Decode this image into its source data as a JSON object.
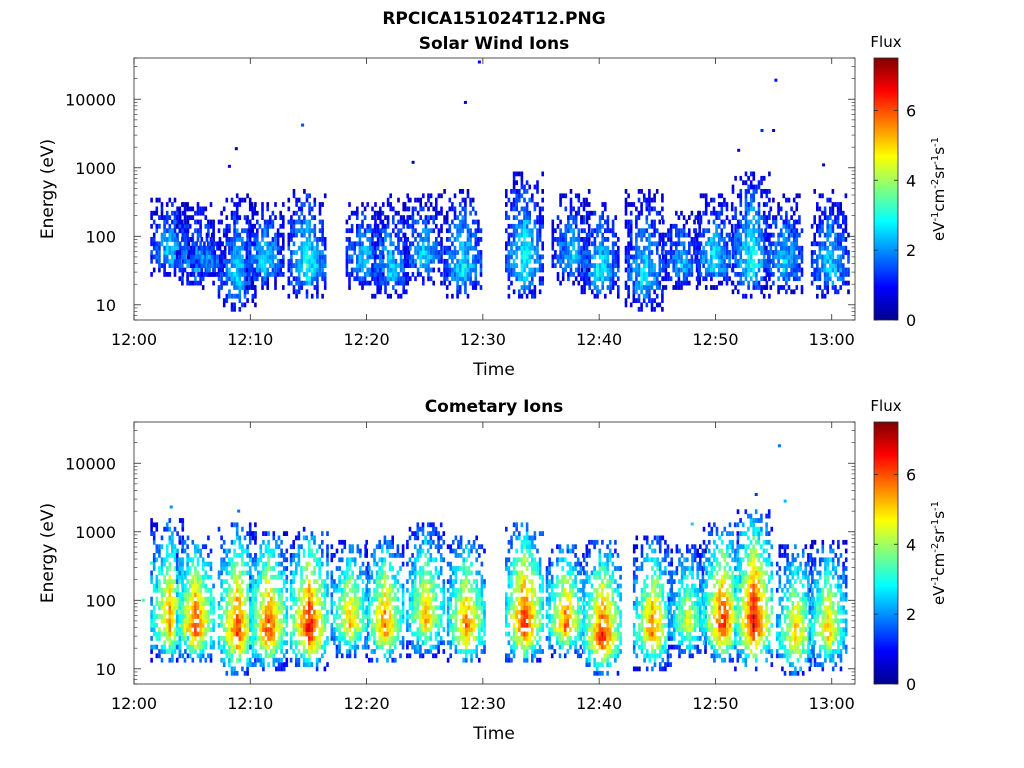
{
  "figure": {
    "title": "RPCICA151024T12.PNG",
    "colorbar_label": "Flux",
    "colorbar_units": "eV-1cm-2sr-1s-1"
  },
  "chart_data": [
    {
      "type": "heatmap",
      "title": "Solar Wind Ions",
      "xlabel": "Time",
      "ylabel": "Energy (eV)",
      "y_scale": "log",
      "ylim": [
        6,
        40000
      ],
      "xlim": [
        "12:00",
        "13:02"
      ],
      "x_ticks": [
        "12:00",
        "12:10",
        "12:20",
        "12:30",
        "12:40",
        "12:50",
        "13:00"
      ],
      "y_ticks": [
        "10",
        "100",
        "1000",
        "10000"
      ],
      "colorbar": {
        "min": 0,
        "max": 7.5,
        "ticks": [
          "0",
          "2",
          "4",
          "6"
        ],
        "colormap": "jet"
      },
      "bursts": [
        {
          "t": 3.0,
          "lo": 25,
          "hi": 400,
          "peak": 2.5
        },
        {
          "t": 5.2,
          "lo": 18,
          "hi": 300,
          "peak": 2.6
        },
        {
          "t": 6.2,
          "lo": 25,
          "hi": 120,
          "peak": 2.2
        },
        {
          "t": 8.8,
          "lo": 8,
          "hi": 400,
          "peak": 2.6
        },
        {
          "t": 11.2,
          "lo": 18,
          "hi": 300,
          "peak": 2.6
        },
        {
          "t": 14.8,
          "lo": 12,
          "hi": 500,
          "peak": 3.1
        },
        {
          "t": 19.8,
          "lo": 18,
          "hi": 300,
          "peak": 2.6
        },
        {
          "t": 22.0,
          "lo": 12,
          "hi": 400,
          "peak": 2.5
        },
        {
          "t": 24.8,
          "lo": 20,
          "hi": 450,
          "peak": 2.5
        },
        {
          "t": 28.2,
          "lo": 12,
          "hi": 500,
          "peak": 2.8
        },
        {
          "t": 33.5,
          "lo": 12,
          "hi": 900,
          "peak": 3.0
        },
        {
          "t": 37.5,
          "lo": 20,
          "hi": 500,
          "peak": 2.4
        },
        {
          "t": 40.0,
          "lo": 12,
          "hi": 300,
          "peak": 2.8
        },
        {
          "t": 43.8,
          "lo": 8,
          "hi": 500,
          "peak": 2.7
        },
        {
          "t": 47.0,
          "lo": 18,
          "hi": 250,
          "peak": 2.4
        },
        {
          "t": 49.8,
          "lo": 18,
          "hi": 400,
          "peak": 2.8
        },
        {
          "t": 53.0,
          "lo": 12,
          "hi": 900,
          "peak": 3.0
        },
        {
          "t": 55.8,
          "lo": 15,
          "hi": 400,
          "peak": 2.6
        },
        {
          "t": 59.8,
          "lo": 12,
          "hi": 500,
          "peak": 2.6
        }
      ],
      "outliers": [
        {
          "t": 8.8,
          "e": 1900,
          "v": 0.5
        },
        {
          "t": 14.5,
          "e": 4200,
          "v": 1.5
        },
        {
          "t": 28.5,
          "e": 9000,
          "v": 0.5
        },
        {
          "t": 29.7,
          "e": 35000,
          "v": 1.0
        },
        {
          "t": 54.0,
          "e": 3500,
          "v": 1.2
        },
        {
          "t": 55.2,
          "e": 19000,
          "v": 1.0
        },
        {
          "t": 52.0,
          "e": 1800,
          "v": 0.5
        },
        {
          "t": 55.0,
          "e": 3500,
          "v": 0.6
        },
        {
          "t": 8.2,
          "e": 1050,
          "v": 0.6
        },
        {
          "t": 24.0,
          "e": 1200,
          "v": 0.5
        },
        {
          "t": 59.3,
          "e": 1100,
          "v": 0.5
        }
      ]
    },
    {
      "type": "heatmap",
      "title": "Cometary Ions",
      "xlabel": "Time",
      "ylabel": "Energy (eV)",
      "y_scale": "log",
      "ylim": [
        6,
        40000
      ],
      "xlim": [
        "12:00",
        "13:02"
      ],
      "x_ticks": [
        "12:00",
        "12:10",
        "12:20",
        "12:30",
        "12:40",
        "12:50",
        "13:00"
      ],
      "y_ticks": [
        "10",
        "100",
        "1000",
        "10000"
      ],
      "colorbar": {
        "min": 0,
        "max": 7.5,
        "ticks": [
          "0",
          "2",
          "4",
          "6"
        ],
        "colormap": "jet"
      },
      "bursts": [
        {
          "t": 3.0,
          "lo": 12,
          "hi": 1500,
          "peak": 5.6
        },
        {
          "t": 5.2,
          "lo": 12,
          "hi": 900,
          "peak": 6.3
        },
        {
          "t": 8.8,
          "lo": 8,
          "hi": 1400,
          "peak": 6.2
        },
        {
          "t": 11.5,
          "lo": 10,
          "hi": 1000,
          "peak": 6.3
        },
        {
          "t": 15.0,
          "lo": 10,
          "hi": 1100,
          "peak": 6.8
        },
        {
          "t": 18.5,
          "lo": 15,
          "hi": 800,
          "peak": 5.3
        },
        {
          "t": 21.5,
          "lo": 12,
          "hi": 900,
          "peak": 5.9
        },
        {
          "t": 25.0,
          "lo": 15,
          "hi": 1400,
          "peak": 5.3
        },
        {
          "t": 28.5,
          "lo": 12,
          "hi": 900,
          "peak": 5.9
        },
        {
          "t": 33.5,
          "lo": 12,
          "hi": 1400,
          "peak": 6.6
        },
        {
          "t": 37.0,
          "lo": 15,
          "hi": 700,
          "peak": 5.9
        },
        {
          "t": 40.2,
          "lo": 8,
          "hi": 800,
          "peak": 6.5
        },
        {
          "t": 44.5,
          "lo": 10,
          "hi": 900,
          "peak": 5.8
        },
        {
          "t": 47.5,
          "lo": 15,
          "hi": 700,
          "peak": 4.6
        },
        {
          "t": 50.5,
          "lo": 12,
          "hi": 1400,
          "peak": 6.5
        },
        {
          "t": 53.2,
          "lo": 10,
          "hi": 2200,
          "peak": 6.9
        },
        {
          "t": 56.8,
          "lo": 8,
          "hi": 700,
          "peak": 5.3
        },
        {
          "t": 59.6,
          "lo": 10,
          "hi": 800,
          "peak": 5.2
        }
      ],
      "outliers": [
        {
          "t": 3.2,
          "e": 2300,
          "v": 2.0
        },
        {
          "t": 9.0,
          "e": 2000,
          "v": 1.8
        },
        {
          "t": 53.5,
          "e": 3500,
          "v": 1.3
        },
        {
          "t": 55.5,
          "e": 18000,
          "v": 1.8
        },
        {
          "t": 1.5,
          "e": 350,
          "v": 3.0
        },
        {
          "t": 0.8,
          "e": 100,
          "v": 3.2
        },
        {
          "t": 56.0,
          "e": 2800,
          "v": 2.3
        },
        {
          "t": 48.0,
          "e": 1300,
          "v": 2.5
        }
      ]
    }
  ]
}
